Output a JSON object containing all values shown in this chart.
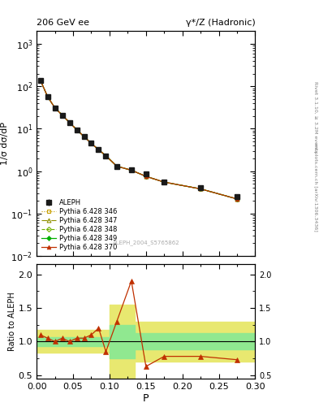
{
  "title_left": "206 GeV ee",
  "title_right": "γ*/Z (Hadronic)",
  "ylabel_main": "1/σ dσ/dP",
  "ylabel_ratio": "Ratio to ALEPH",
  "xlabel": "P",
  "right_label_top": "Rivet 3.1.10, ≥ 3.2M events",
  "right_label_bot": "mcplots.cern.ch [arXiv:1306.3436]",
  "watermark": "ALEPH_2004_S5765862",
  "aleph_x": [
    0.005,
    0.015,
    0.025,
    0.035,
    0.045,
    0.055,
    0.065,
    0.075,
    0.085,
    0.095,
    0.11,
    0.13,
    0.15,
    0.175,
    0.225,
    0.275
  ],
  "aleph_y": [
    140.0,
    57.0,
    31.0,
    21.0,
    14.0,
    9.5,
    6.5,
    4.5,
    3.2,
    2.3,
    1.3,
    1.05,
    0.85,
    0.55,
    0.4,
    0.25
  ],
  "aleph_yerr": [
    15.0,
    5.0,
    3.0,
    2.0,
    1.5,
    1.0,
    0.7,
    0.5,
    0.35,
    0.25,
    0.15,
    0.12,
    0.1,
    0.06,
    0.05,
    0.03
  ],
  "mc_x": [
    0.005,
    0.015,
    0.025,
    0.035,
    0.045,
    0.055,
    0.065,
    0.075,
    0.085,
    0.095,
    0.11,
    0.13,
    0.15,
    0.175,
    0.225,
    0.275
  ],
  "mc346_y": [
    140.0,
    57.0,
    31.0,
    21.0,
    14.0,
    9.5,
    6.5,
    4.5,
    3.2,
    2.3,
    1.3,
    1.05,
    0.75,
    0.55,
    0.38,
    0.22
  ],
  "mc347_y": [
    140.0,
    57.0,
    31.0,
    21.0,
    14.0,
    9.5,
    6.5,
    4.5,
    3.2,
    2.3,
    1.3,
    1.05,
    0.75,
    0.55,
    0.38,
    0.22
  ],
  "mc348_y": [
    140.0,
    57.0,
    31.0,
    21.0,
    14.0,
    9.5,
    6.5,
    4.5,
    3.2,
    2.3,
    1.3,
    1.05,
    0.75,
    0.55,
    0.38,
    0.22
  ],
  "mc349_y": [
    140.0,
    57.0,
    31.0,
    21.0,
    14.0,
    9.5,
    6.5,
    4.5,
    3.2,
    2.3,
    1.3,
    1.05,
    0.75,
    0.55,
    0.38,
    0.22
  ],
  "mc370_y": [
    140.0,
    57.0,
    31.0,
    21.0,
    14.0,
    9.5,
    6.5,
    4.5,
    3.2,
    2.3,
    1.3,
    1.05,
    0.75,
    0.55,
    0.38,
    0.22
  ],
  "ratio370_x": [
    0.005,
    0.015,
    0.025,
    0.035,
    0.045,
    0.055,
    0.065,
    0.075,
    0.085,
    0.095,
    0.11,
    0.13,
    0.15,
    0.175,
    0.225,
    0.275
  ],
  "ratio370_y": [
    1.1,
    1.05,
    1.0,
    1.05,
    1.0,
    1.05,
    1.05,
    1.1,
    1.2,
    0.85,
    1.3,
    1.9,
    0.63,
    0.78,
    0.78,
    0.73
  ],
  "band_green_x": [
    0.0,
    0.1,
    0.1,
    0.135,
    0.135,
    0.3
  ],
  "band_green_y_lo": [
    0.93,
    0.93,
    0.75,
    0.75,
    0.88,
    0.88
  ],
  "band_green_y_hi": [
    1.07,
    1.07,
    1.25,
    1.25,
    1.12,
    1.12
  ],
  "band_yellow_x": [
    0.0,
    0.1,
    0.1,
    0.135,
    0.135,
    0.3
  ],
  "band_yellow_y_lo": [
    0.83,
    0.83,
    0.45,
    0.45,
    0.7,
    0.7
  ],
  "band_yellow_y_hi": [
    1.17,
    1.17,
    1.55,
    1.55,
    1.3,
    1.3
  ],
  "color_346": "#c8a000",
  "color_347": "#909000",
  "color_348": "#70b000",
  "color_349": "#00b000",
  "color_370": "#c03000",
  "color_aleph": "#1a1a1a",
  "color_band_green": "#90e890",
  "color_band_yellow": "#e8e870",
  "ylim_main": [
    0.01,
    2000
  ],
  "ylim_ratio": [
    0.45,
    2.15
  ],
  "xlim": [
    0.0,
    0.3
  ],
  "ratio_yticks": [
    0.5,
    1.0,
    1.5,
    2.0
  ]
}
